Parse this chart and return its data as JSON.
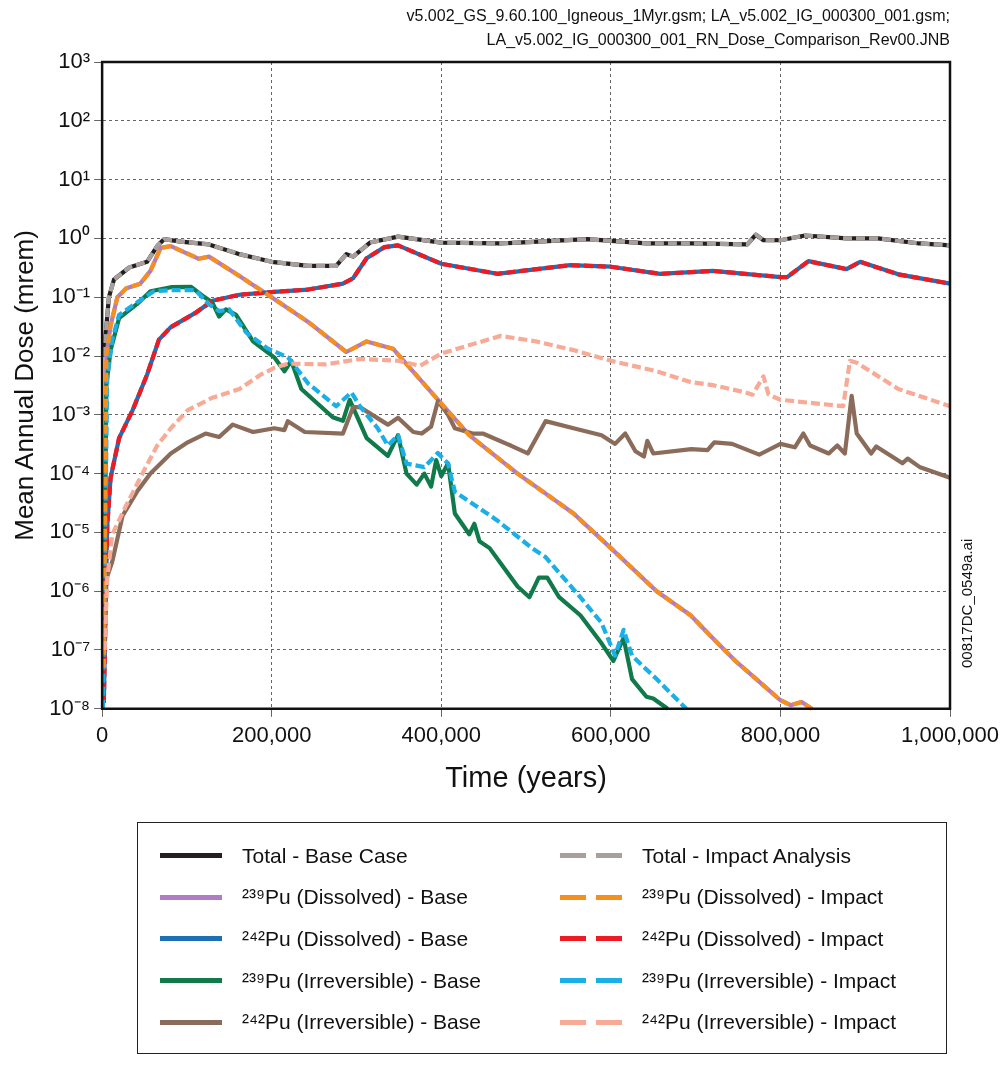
{
  "chart_data": {
    "type": "line",
    "xlabel": "Time (years)",
    "ylabel": "Mean Annual Dose (mrem)",
    "annotations": [
      "v5.002_GS_9.60.100_Igneous_1Myr.gsm; LA_v5.002_IG_000300_001.gsm; LA_v5.002_IG_000300_001_RN_Dose_Comparison_Rev00.JNB",
      "00817DC_0549a.ai"
    ],
    "xlim": [
      0,
      1000000
    ],
    "xticks": [
      0,
      {
        "value": 200000,
        "label": "200,000"
      },
      {
        "value": 400000,
        "label": "400,000"
      },
      {
        "value": 600000,
        "label": "600,000"
      },
      {
        "value": 800000,
        "label": "800,000"
      },
      {
        "value": 1000000,
        "label": "1,000,000"
      }
    ],
    "ylim": [
      1e-08,
      1000
    ],
    "yticks": [
      {
        "value": 1e-08,
        "label": "10⁻⁸"
      },
      {
        "value": 1e-07,
        "label": "10⁻⁷"
      },
      {
        "value": 1e-06,
        "label": "10⁻⁶"
      },
      {
        "value": 1e-05,
        "label": "10⁻⁵"
      },
      {
        "value": 0.0001,
        "label": "10⁻⁴"
      },
      {
        "value": 0.001,
        "label": "10⁻³"
      },
      {
        "value": 0.01,
        "label": "10⁻²"
      },
      {
        "value": 0.1,
        "label": "10⁻¹"
      },
      {
        "value": 1,
        "label": "10⁰"
      },
      {
        "value": 10,
        "label": "10¹"
      },
      {
        "value": 100,
        "label": "10²"
      },
      {
        "value": 1000,
        "label": "10³"
      }
    ],
    "log": "y",
    "grid": true,
    "legend": "bottom",
    "marker": "none",
    "series": [
      {
        "name": "Total - Base Case",
        "color": "#231f20",
        "line_style": "solid",
        "x": [
          2000,
          8000,
          14000,
          32000,
          53000,
          65000,
          73000,
          93000,
          126000,
          162000,
          200000,
          243000,
          276000,
          288000,
          296000,
          316000,
          349000,
          400000,
          470000,
          572000,
          642000,
          694000,
          761000,
          771000,
          780000,
          800000,
          829000,
          878000,
          915000,
          964000,
          1000000
        ],
        "values": [
          0.01,
          0.1,
          0.2,
          0.32,
          0.4,
          0.74,
          0.97,
          0.88,
          0.79,
          0.54,
          0.4,
          0.34,
          0.34,
          0.54,
          0.49,
          0.85,
          1.07,
          0.85,
          0.82,
          0.97,
          0.82,
          0.82,
          0.79,
          1.16,
          0.93,
          0.93,
          1.12,
          1.0,
          1.0,
          0.82,
          0.76
        ]
      },
      {
        "name": "²³⁹Pu (Dissolved) - Base",
        "color": "#b07cc6",
        "line_style": "solid",
        "x": [
          2000,
          5000,
          10000,
          18000,
          28000,
          45000,
          57000,
          69000,
          81000,
          114000,
          126000,
          162000,
          203000,
          243000,
          288000,
          312000,
          343000,
          392000,
          433000,
          490000,
          556000,
          600000,
          654000,
          694000,
          720000,
          747000,
          800000,
          812000,
          825000,
          837000
        ],
        "values": [
          5e-08,
          0.01,
          0.033,
          0.1,
          0.14,
          0.17,
          0.28,
          0.69,
          0.74,
          0.45,
          0.49,
          0.23,
          0.093,
          0.038,
          0.0117,
          0.0177,
          0.0133,
          0.0021,
          0.00045,
          0.0001,
          2.1e-05,
          5.4e-06,
          1e-06,
          3.9e-07,
          1.6e-07,
          6.5e-08,
          1.4e-08,
          1.15e-08,
          1.3e-08,
          1e-08
        ]
      },
      {
        "name": "²⁴²Pu (Dissolved) - Base",
        "color": "#1f6fb4",
        "line_style": "solid",
        "x": [
          2000,
          6000,
          10000,
          20000,
          36000,
          53000,
          67000,
          81000,
          110000,
          130000,
          162000,
          203000,
          243000,
          284000,
          296000,
          312000,
          333000,
          349000,
          400000,
          466000,
          552000,
          600000,
          658000,
          720000,
          800000,
          808000,
          833000,
          878000,
          894000,
          939000,
          1000000
        ],
        "values": [
          1.26e-08,
          1.26e-05,
          8.5e-05,
          0.0004,
          0.0012,
          0.0048,
          0.019,
          0.031,
          0.054,
          0.087,
          0.11,
          0.123,
          0.135,
          0.17,
          0.21,
          0.46,
          0.71,
          0.76,
          0.37,
          0.25,
          0.35,
          0.33,
          0.25,
          0.28,
          0.22,
          0.22,
          0.41,
          0.3,
          0.4,
          0.245,
          0.17
        ]
      },
      {
        "name": "²³⁹Pu (Irreversible) - Base",
        "color": "#107a4a",
        "line_style": "solid",
        "x": [
          2000,
          5000,
          10000,
          20000,
          41000,
          57000,
          81000,
          105000,
          118000,
          130000,
          138000,
          146000,
          158000,
          178000,
          203000,
          215000,
          223000,
          235000,
          272000,
          284000,
          292000,
          312000,
          337000,
          349000,
          359000,
          371000,
          380000,
          388000,
          394000,
          400000,
          408000,
          416000,
          433000,
          439000,
          445000,
          457000,
          490000,
          504000,
          515000,
          525000,
          539000,
          564000,
          589000,
          603000,
          615000,
          625000,
          642000,
          650000,
          667000
        ],
        "values": [
          5e-08,
          0.0032,
          0.0126,
          0.044,
          0.076,
          0.126,
          0.148,
          0.15,
          0.107,
          0.081,
          0.047,
          0.062,
          0.05,
          0.0178,
          0.0095,
          0.0055,
          0.0083,
          0.00275,
          0.00091,
          0.00079,
          0.0018,
          0.0004,
          0.0002,
          0.00045,
          0.0001,
          6.5e-05,
          0.0001,
          6e-05,
          0.00017,
          9.1e-05,
          0.00015,
          2.1e-05,
          9.3e-06,
          1.4e-05,
          7.1e-06,
          5.4e-06,
          1.2e-06,
          7.9e-07,
          1.7e-06,
          1.7e-06,
          7.9e-07,
          3.9e-07,
          1.3e-07,
          6.5e-08,
          1.6e-07,
          3.2e-08,
          1.6e-08,
          1.5e-08,
          1e-08
        ]
      },
      {
        "name": "²⁴²Pu (Irreversible) - Base",
        "color": "#8b6b5a",
        "line_style": "solid",
        "x": [
          2000,
          5000,
          12000,
          24000,
          41000,
          57000,
          81000,
          101000,
          122000,
          138000,
          154000,
          178000,
          203000,
          215000,
          219000,
          239000,
          284000,
          296000,
          304000,
          337000,
          349000,
          367000,
          377000,
          388000,
          396000,
          408000,
          416000,
          437000,
          449000,
          482000,
          502000,
          523000,
          556000,
          589000,
          605000,
          617000,
          629000,
          639000,
          643000,
          650000,
          695000,
          714000,
          722000,
          743000,
          775000,
          800000,
          817000,
          827000,
          835000,
          857000,
          867000,
          876000,
          884000,
          890000,
          907000,
          913000,
          944000,
          950000,
          964000,
          1000000
        ],
        "values": [
          5e-08,
          1.6e-06,
          3.2e-06,
          1.9e-05,
          4.9e-05,
          0.0001,
          0.00022,
          0.00034,
          0.00048,
          0.00042,
          0.00068,
          0.00051,
          0.00059,
          0.00055,
          0.00078,
          0.00051,
          0.00048,
          0.00135,
          0.00135,
          0.00068,
          0.00089,
          0.00051,
          0.00048,
          0.00063,
          0.0017,
          0.001,
          0.00059,
          0.00048,
          0.00048,
          0.0003,
          0.00022,
          0.00078,
          0.00059,
          0.00045,
          0.00032,
          0.00048,
          0.00024,
          0.000195,
          0.00036,
          0.00022,
          0.00026,
          0.00025,
          0.00034,
          0.00032,
          0.00021,
          0.00032,
          0.00028,
          0.00048,
          0.0003,
          0.00022,
          0.0003,
          0.00022,
          0.0021,
          0.00048,
          0.00022,
          0.00029,
          0.00015,
          0.00018,
          0.00013,
          8.5e-05
        ]
      },
      {
        "name": "Total - Impact Analysis",
        "color": "#a8a09c",
        "line_style": "dashed",
        "x": [
          2000,
          8000,
          14000,
          32000,
          53000,
          65000,
          73000,
          93000,
          126000,
          162000,
          200000,
          243000,
          276000,
          288000,
          296000,
          316000,
          349000,
          400000,
          470000,
          572000,
          642000,
          694000,
          761000,
          771000,
          780000,
          800000,
          829000,
          878000,
          915000,
          964000,
          1000000
        ],
        "values": [
          0.01,
          0.1,
          0.2,
          0.32,
          0.4,
          0.74,
          0.97,
          0.88,
          0.79,
          0.54,
          0.4,
          0.34,
          0.34,
          0.54,
          0.49,
          0.85,
          1.07,
          0.85,
          0.82,
          0.97,
          0.82,
          0.82,
          0.79,
          1.16,
          0.93,
          0.93,
          1.12,
          1.0,
          1.0,
          0.82,
          0.76
        ]
      },
      {
        "name": "²³⁹Pu (Dissolved) - Impact",
        "color": "#f5901e",
        "line_style": "dashed",
        "x": [
          2000,
          5000,
          10000,
          18000,
          28000,
          45000,
          57000,
          69000,
          81000,
          114000,
          126000,
          162000,
          203000,
          243000,
          288000,
          312000,
          343000,
          392000,
          433000,
          490000,
          556000,
          600000,
          654000,
          694000,
          720000,
          747000,
          800000,
          812000,
          825000,
          837000
        ],
        "values": [
          5e-08,
          0.01,
          0.033,
          0.1,
          0.14,
          0.17,
          0.28,
          0.69,
          0.74,
          0.45,
          0.49,
          0.23,
          0.093,
          0.038,
          0.0117,
          0.0177,
          0.0133,
          0.0021,
          0.00045,
          0.0001,
          2.1e-05,
          5.4e-06,
          1e-06,
          3.9e-07,
          1.6e-07,
          6.5e-08,
          1.4e-08,
          1.15e-08,
          1.3e-08,
          1e-08
        ]
      },
      {
        "name": "²⁴²Pu (Dissolved) - Impact",
        "color": "#ed1c24",
        "line_style": "dashed",
        "x": [
          2000,
          6000,
          10000,
          20000,
          36000,
          53000,
          67000,
          81000,
          110000,
          130000,
          162000,
          203000,
          243000,
          284000,
          296000,
          312000,
          333000,
          349000,
          400000,
          466000,
          552000,
          600000,
          658000,
          720000,
          800000,
          808000,
          833000,
          878000,
          894000,
          939000,
          1000000
        ],
        "values": [
          1.26e-08,
          1.26e-05,
          8.5e-05,
          0.0004,
          0.0012,
          0.0048,
          0.019,
          0.031,
          0.054,
          0.087,
          0.11,
          0.123,
          0.135,
          0.17,
          0.21,
          0.46,
          0.71,
          0.76,
          0.37,
          0.25,
          0.35,
          0.33,
          0.25,
          0.28,
          0.22,
          0.22,
          0.41,
          0.3,
          0.4,
          0.245,
          0.17
        ]
      },
      {
        "name": "²³⁹Pu (Irreversible) - Impact",
        "color": "#1aafe6",
        "line_style": "dashed",
        "x": [
          1000,
          6000,
          12000,
          20000,
          41000,
          61000,
          81000,
          110000,
          126000,
          138000,
          150000,
          170000,
          195000,
          219000,
          227000,
          243000,
          276000,
          294000,
          304000,
          325000,
          337000,
          349000,
          359000,
          380000,
          396000,
          408000,
          416000,
          466000,
          507000,
          523000,
          564000,
          589000,
          605000,
          615000,
          625000,
          654000,
          689000
        ],
        "values": [
          1e-08,
          0.0042,
          0.019,
          0.05,
          0.081,
          0.126,
          0.132,
          0.132,
          0.076,
          0.058,
          0.062,
          0.025,
          0.0135,
          0.0095,
          0.0068,
          0.0034,
          0.0014,
          0.0024,
          0.0014,
          0.00059,
          0.0003,
          0.00045,
          0.000148,
          0.000129,
          0.000224,
          0.000148,
          4.9e-05,
          1.6e-05,
          5.4e-06,
          3.8e-06,
          7.9e-07,
          2.9e-07,
          8e-08,
          2.2e-07,
          8e-08,
          3.2e-08,
          1e-08
        ]
      },
      {
        "name": "²⁴²Pu (Irreversible) - Impact",
        "color": "#f7ab97",
        "line_style": "dashed",
        "x": [
          3000,
          6000,
          12000,
          28000,
          49000,
          65000,
          81000,
          101000,
          130000,
          162000,
          187000,
          203000,
          219000,
          264000,
          304000,
          349000,
          375000,
          400000,
          470000,
          511000,
          556000,
          600000,
          654000,
          694000,
          720000,
          759000,
          767000,
          780000,
          786000,
          800000,
          874000,
          882000,
          890000,
          939000,
          1000000
        ],
        "values": [
          1e-07,
          1.6e-06,
          9.3e-06,
          2.8e-05,
          0.00011,
          0.0003,
          0.00059,
          0.0012,
          0.00195,
          0.00275,
          0.0048,
          0.0063,
          0.0074,
          0.0072,
          0.0089,
          0.0083,
          0.0068,
          0.011,
          0.022,
          0.0178,
          0.0126,
          0.0083,
          0.0055,
          0.0036,
          0.0032,
          0.0024,
          0.0022,
          0.0045,
          0.0022,
          0.0018,
          0.0014,
          0.0083,
          0.0077,
          0.00275,
          0.0014
        ]
      }
    ]
  }
}
